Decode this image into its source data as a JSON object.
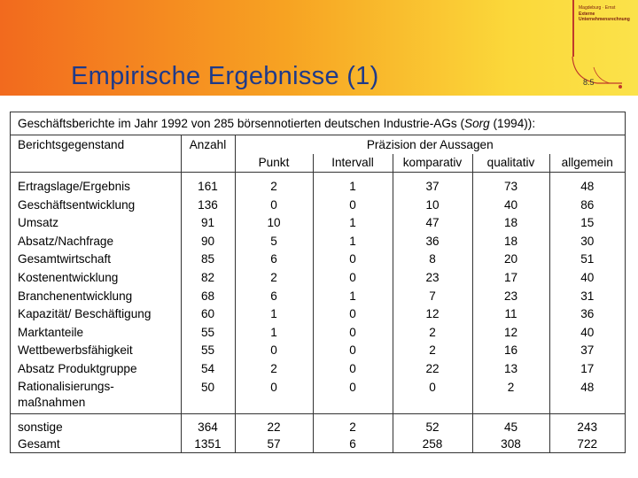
{
  "header": {
    "title": "Empirische Ergebnisse (1)",
    "logo_lines": [
      "Magdeburg · Ernst",
      "Externe",
      "Unternehmensrechnung"
    ],
    "page_number": "8.5",
    "colors": {
      "gradient_start": "#f26a1e",
      "gradient_end": "#fbe24a",
      "title": "#1e3a8a"
    }
  },
  "table": {
    "caption_prefix": "Geschäftsberichte im Jahr 1992 von 285 börsennotierten deutschen Industrie-AGs (",
    "caption_author": "Sorg",
    "caption_suffix": " (1994)):",
    "col_subject": "Berichtsgegenstand",
    "col_count": "Anzahl",
    "col_group": "Präzision der Aussagen",
    "sub_columns": [
      "Punkt",
      "Intervall",
      "komparativ",
      "qualitativ",
      "allgemein"
    ],
    "rows": [
      {
        "label": "Ertragslage/Ergebnis",
        "values": [
          "161",
          "2",
          "1",
          "37",
          "73",
          "48"
        ]
      },
      {
        "label": "Geschäftsentwicklung",
        "values": [
          "136",
          "0",
          "0",
          "10",
          "40",
          "86"
        ]
      },
      {
        "label": "Umsatz",
        "values": [
          "91",
          "10",
          "1",
          "47",
          "18",
          "15"
        ]
      },
      {
        "label": "Absatz/Nachfrage",
        "values": [
          "90",
          "5",
          "1",
          "36",
          "18",
          "30"
        ]
      },
      {
        "label": "Gesamtwirtschaft",
        "values": [
          "85",
          "6",
          "0",
          "8",
          "20",
          "51"
        ]
      },
      {
        "label": "Kostenentwicklung",
        "values": [
          "82",
          "2",
          "0",
          "23",
          "17",
          "40"
        ]
      },
      {
        "label": "Branchenentwicklung",
        "values": [
          "68",
          "6",
          "1",
          "7",
          "23",
          "31"
        ]
      },
      {
        "label": "Kapazität/ Beschäftigung",
        "values": [
          "60",
          "1",
          "0",
          "12",
          "11",
          "36"
        ]
      },
      {
        "label": "Marktanteile",
        "values": [
          "55",
          "1",
          "0",
          "2",
          "12",
          "40"
        ]
      },
      {
        "label": "Wettbewerbsfähigkeit",
        "values": [
          "55",
          "0",
          "0",
          "2",
          "16",
          "37"
        ]
      },
      {
        "label": "Absatz Produktgruppe",
        "values": [
          "54",
          "2",
          "0",
          "22",
          "13",
          "17"
        ]
      },
      {
        "label": "Rationalisierungs-",
        "label2": "maßnahmen",
        "values": [
          "50",
          "0",
          "0",
          "0",
          "2",
          "48"
        ]
      }
    ],
    "footer": [
      {
        "label": "sonstige",
        "values": [
          "364",
          "22",
          "2",
          "52",
          "45",
          "243"
        ]
      },
      {
        "label": "Gesamt",
        "values": [
          "1351",
          "57",
          "6",
          "258",
          "308",
          "722"
        ]
      }
    ]
  }
}
